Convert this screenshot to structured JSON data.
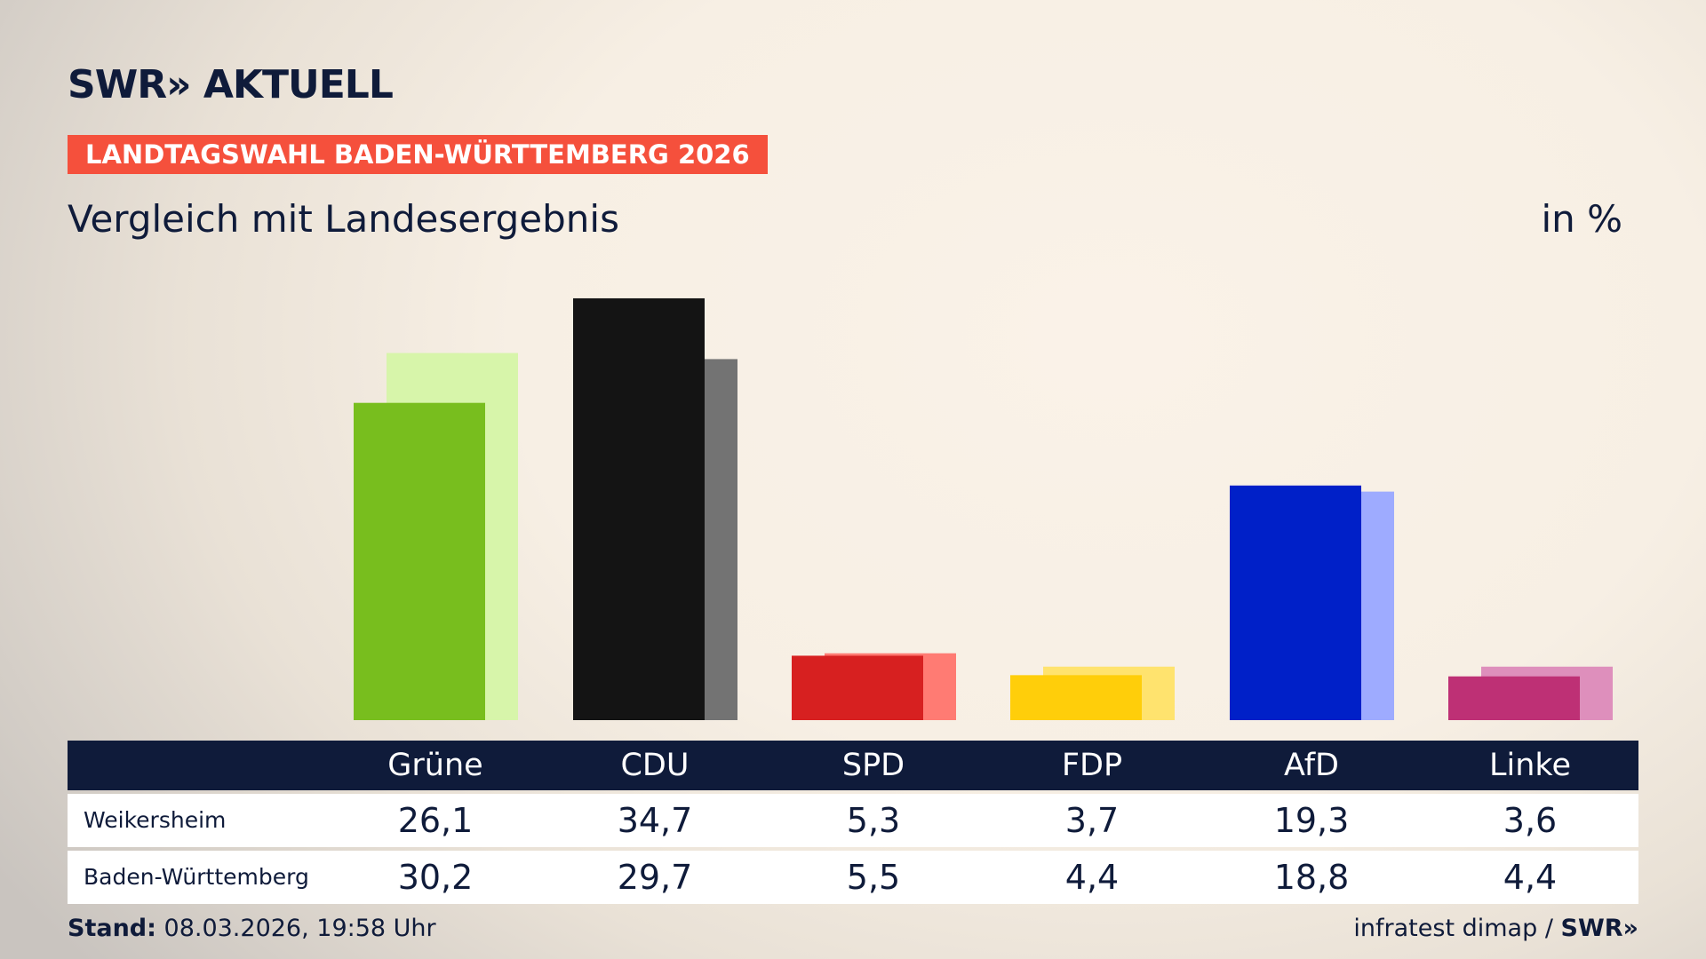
{
  "header": {
    "logo": "SWR» AKTUELL",
    "banner": "LANDTAGSWAHL BADEN-WÜRTTEMBERG 2026",
    "subtitle": "Vergleich mit Landesergebnis",
    "unit": "in %"
  },
  "chart_data": {
    "type": "bar",
    "title": "Vergleich mit Landesergebnis",
    "ylabel": "in %",
    "ylim": [
      0,
      35
    ],
    "grid": false,
    "categories": [
      "Grüne",
      "CDU",
      "SPD",
      "FDP",
      "AfD",
      "Linke"
    ],
    "series": [
      {
        "name": "Weikersheim",
        "values": [
          "26,1",
          "34,7",
          "5,3",
          "3,7",
          "19,3",
          "3,6"
        ],
        "colors": [
          "#78be1e",
          "#141414",
          "#d72020",
          "#ffce0a",
          "#0020c8",
          "#be3075"
        ]
      },
      {
        "name": "Baden-Württemberg",
        "values": [
          "30,2",
          "29,7",
          "5,5",
          "4,4",
          "18,8",
          "4,4"
        ],
        "colors": [
          "#d7f5aa",
          "#737373",
          "#ff7b73",
          "#ffe36e",
          "#9eabff",
          "#de8fbc"
        ]
      }
    ]
  },
  "footer": {
    "stand_label": "Stand:",
    "stand_value": "08.03.2026, 19:58 Uhr",
    "source": "infratest dimap /",
    "source_logo": "SWR»"
  }
}
